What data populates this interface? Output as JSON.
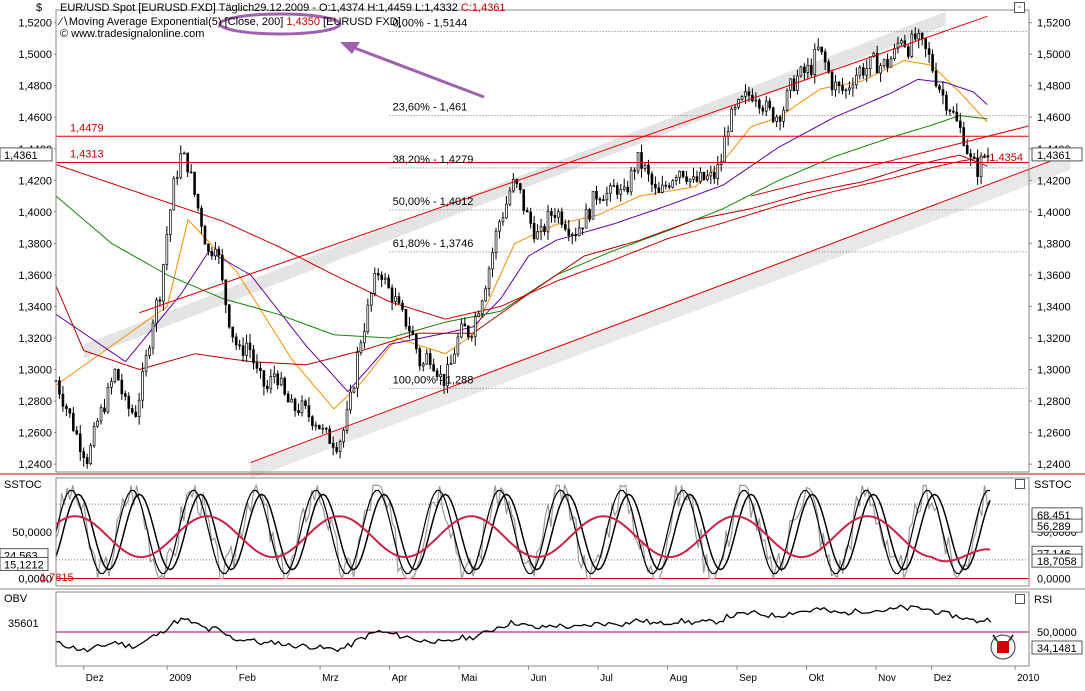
{
  "header": {
    "currency_symbol": "$",
    "line1": "EUR/USD Spot [EURUSD FXD]  Täglich29.12.2009 - O:1,4374 H:1,4459 L:1,4332 ",
    "line1_close": "C:1,4361",
    "line2_a": "Moving Average Exponential(5) ",
    "line2_circled": "[Close, 200] ",
    "line2_value": "1,4350",
    "line2_b": " [EURUSD FXD]",
    "line3": "www.tradesignalonline.com",
    "copyright_icon": "copyright-icon"
  },
  "colors": {
    "up": "#ffffff",
    "down": "#000000",
    "ema5": "#b40000",
    "ema20": "#ff8c00",
    "ema50": "#6600aa",
    "ema100": "#118800",
    "ema200": "#cc0000",
    "channel": "#e00000",
    "arrow": "#a060b0",
    "stoch_k": "#000000",
    "stoch_d": "#cc2244",
    "stoch_raw": "#999999",
    "obv": "#000000"
  },
  "chart_data": [
    {
      "type": "candlestick",
      "name": "EUR/USD Spot",
      "ylim": [
        1.235,
        1.528
      ],
      "y_ticks": [
        "1,5200",
        "1,5000",
        "1,4800",
        "1,4600",
        "1,4400",
        "1,4200",
        "1,4000",
        "1,3800",
        "1,3600",
        "1,3400",
        "1,3200",
        "1,3000",
        "1,2800",
        "1,2600",
        "1,2400"
      ],
      "y_tick_values": [
        1.52,
        1.5,
        1.48,
        1.46,
        1.44,
        1.42,
        1.4,
        1.38,
        1.36,
        1.34,
        1.32,
        1.3,
        1.28,
        1.26,
        1.24
      ],
      "x_labels": [
        "Dez",
        "2009",
        "Feb",
        "Mrz",
        "Apr",
        "Mai",
        "Jun",
        "Jul",
        "Aug",
        "Sep",
        "Okt",
        "Nov",
        "Dez",
        "2010"
      ],
      "x_label_values": [
        2,
        8,
        13,
        19,
        24,
        29,
        34,
        39,
        44,
        49,
        54,
        59,
        63,
        69
      ],
      "last_price_label": "1,4361",
      "last_price": 1.4361,
      "ema_value_label": "1,4354",
      "horizontal_levels": [
        {
          "label": "1,4479",
          "value": 1.4479
        },
        {
          "label": "1,4313",
          "value": 1.4313
        }
      ],
      "fibonacci": [
        {
          "label": "0,00% - 1,5144",
          "value": 1.5144
        },
        {
          "label": "23,60% - 1,461",
          "value": 1.461
        },
        {
          "label": "38,20% - 1,4279",
          "value": 1.4279
        },
        {
          "label": "50,00% - 1,4012",
          "value": 1.4012
        },
        {
          "label": "61,80% - 1,3746",
          "value": 1.3746
        },
        {
          "label": "100,00% - 1,288",
          "value": 1.288
        }
      ],
      "channel_upper": [
        [
          6,
          1.336
        ],
        [
          67,
          1.524
        ]
      ],
      "channel_lower": [
        [
          14,
          1.241
        ],
        [
          73,
          1.437
        ]
      ],
      "channel_band": [
        [
          2,
          1.316
        ],
        [
          64,
          1.527
        ]
      ],
      "price_path": [
        [
          0,
          1.293
        ],
        [
          0.8,
          1.275
        ],
        [
          1.6,
          1.256
        ],
        [
          2.3,
          1.243
        ],
        [
          3.0,
          1.267
        ],
        [
          3.7,
          1.283
        ],
        [
          4.3,
          1.3
        ],
        [
          5.0,
          1.277
        ],
        [
          5.7,
          1.272
        ],
        [
          6.3,
          1.296
        ],
        [
          7.0,
          1.334
        ],
        [
          7.5,
          1.35
        ],
        [
          8.0,
          1.388
        ],
        [
          8.5,
          1.418
        ],
        [
          9.0,
          1.436
        ],
        [
          9.5,
          1.43
        ],
        [
          10.0,
          1.41
        ],
        [
          10.5,
          1.393
        ],
        [
          11.0,
          1.372
        ],
        [
          11.5,
          1.383
        ],
        [
          12.0,
          1.352
        ],
        [
          12.6,
          1.326
        ],
        [
          13.2,
          1.31
        ],
        [
          13.8,
          1.318
        ],
        [
          14.5,
          1.296
        ],
        [
          15.2,
          1.287
        ],
        [
          15.8,
          1.3
        ],
        [
          16.4,
          1.283
        ],
        [
          17.0,
          1.275
        ],
        [
          17.6,
          1.276
        ],
        [
          18.2,
          1.271
        ],
        [
          18.8,
          1.267
        ],
        [
          19.3,
          1.258
        ],
        [
          19.8,
          1.256
        ],
        [
          20.3,
          1.253
        ],
        [
          20.8,
          1.264
        ],
        [
          21.3,
          1.285
        ],
        [
          21.8,
          1.315
        ],
        [
          22.3,
          1.332
        ],
        [
          22.8,
          1.352
        ],
        [
          23.3,
          1.365
        ],
        [
          23.8,
          1.352
        ],
        [
          24.3,
          1.346
        ],
        [
          24.8,
          1.335
        ],
        [
          25.3,
          1.329
        ],
        [
          25.8,
          1.318
        ],
        [
          26.3,
          1.3
        ],
        [
          26.8,
          1.311
        ],
        [
          27.3,
          1.303
        ],
        [
          27.8,
          1.292
        ],
        [
          28.3,
          1.299
        ],
        [
          28.8,
          1.317
        ],
        [
          29.3,
          1.326
        ],
        [
          29.8,
          1.323
        ],
        [
          30.3,
          1.337
        ],
        [
          30.8,
          1.352
        ],
        [
          31.3,
          1.37
        ],
        [
          31.8,
          1.392
        ],
        [
          32.3,
          1.402
        ],
        [
          32.8,
          1.418
        ],
        [
          33.3,
          1.414
        ],
        [
          33.8,
          1.399
        ],
        [
          34.3,
          1.39
        ],
        [
          34.8,
          1.383
        ],
        [
          35.3,
          1.394
        ],
        [
          35.8,
          1.401
        ],
        [
          36.3,
          1.398
        ],
        [
          36.8,
          1.392
        ],
        [
          37.3,
          1.387
        ],
        [
          37.8,
          1.393
        ],
        [
          38.3,
          1.399
        ],
        [
          38.8,
          1.411
        ],
        [
          39.3,
          1.413
        ],
        [
          39.8,
          1.41
        ],
        [
          40.3,
          1.417
        ],
        [
          40.8,
          1.408
        ],
        [
          41.3,
          1.421
        ],
        [
          41.8,
          1.433
        ],
        [
          42.3,
          1.428
        ],
        [
          42.8,
          1.418
        ],
        [
          43.3,
          1.409
        ],
        [
          43.8,
          1.416
        ],
        [
          44.3,
          1.422
        ],
        [
          44.8,
          1.428
        ],
        [
          45.3,
          1.425
        ],
        [
          45.8,
          1.418
        ],
        [
          46.3,
          1.42
        ],
        [
          46.8,
          1.421
        ],
        [
          47.3,
          1.422
        ],
        [
          47.8,
          1.43
        ],
        [
          48.3,
          1.455
        ],
        [
          48.8,
          1.462
        ],
        [
          49.3,
          1.469
        ],
        [
          49.8,
          1.474
        ],
        [
          50.3,
          1.476
        ],
        [
          50.8,
          1.469
        ],
        [
          51.3,
          1.463
        ],
        [
          51.8,
          1.461
        ],
        [
          52.3,
          1.465
        ],
        [
          52.8,
          1.478
        ],
        [
          53.3,
          1.485
        ],
        [
          53.8,
          1.488
        ],
        [
          54.3,
          1.491
        ],
        [
          54.8,
          1.503
        ],
        [
          55.3,
          1.495
        ],
        [
          55.8,
          1.482
        ],
        [
          56.3,
          1.478
        ],
        [
          56.8,
          1.476
        ],
        [
          57.3,
          1.485
        ],
        [
          57.8,
          1.49
        ],
        [
          58.3,
          1.491
        ],
        [
          58.8,
          1.495
        ],
        [
          59.3,
          1.493
        ],
        [
          59.8,
          1.494
        ],
        [
          60.3,
          1.5
        ],
        [
          60.8,
          1.512
        ],
        [
          61.3,
          1.504
        ],
        [
          61.8,
          1.51
        ],
        [
          62.3,
          1.505
        ],
        [
          62.8,
          1.498
        ],
        [
          63.3,
          1.485
        ],
        [
          63.8,
          1.474
        ],
        [
          64.3,
          1.467
        ],
        [
          64.8,
          1.456
        ],
        [
          65.3,
          1.448
        ],
        [
          65.8,
          1.432
        ],
        [
          66.3,
          1.427
        ],
        [
          66.8,
          1.436
        ],
        [
          67.3,
          1.436
        ]
      ],
      "emas": [
        {
          "key": "ema20",
          "points": [
            [
              0,
              1.29
            ],
            [
              8,
              1.34
            ],
            [
              9.5,
              1.395
            ],
            [
              13,
              1.362
            ],
            [
              17,
              1.306
            ],
            [
              20,
              1.275
            ],
            [
              22,
              1.292
            ],
            [
              24.5,
              1.32
            ],
            [
              28,
              1.31
            ],
            [
              30,
              1.322
            ],
            [
              33,
              1.38
            ],
            [
              36,
              1.392
            ],
            [
              39,
              1.398
            ],
            [
              42,
              1.41
            ],
            [
              46,
              1.416
            ],
            [
              48,
              1.432
            ],
            [
              50,
              1.454
            ],
            [
              52,
              1.46
            ],
            [
              55,
              1.478
            ],
            [
              58,
              1.483
            ],
            [
              61,
              1.496
            ],
            [
              63,
              1.493
            ],
            [
              65,
              1.476
            ],
            [
              67,
              1.457
            ]
          ]
        },
        {
          "key": "ema50",
          "points": [
            [
              0,
              1.335
            ],
            [
              5,
              1.305
            ],
            [
              9,
              1.348
            ],
            [
              11,
              1.375
            ],
            [
              14,
              1.36
            ],
            [
              18,
              1.315
            ],
            [
              21,
              1.286
            ],
            [
              24,
              1.316
            ],
            [
              28,
              1.323
            ],
            [
              30,
              1.327
            ],
            [
              32,
              1.345
            ],
            [
              34,
              1.372
            ],
            [
              36,
              1.382
            ],
            [
              40,
              1.392
            ],
            [
              44,
              1.404
            ],
            [
              48,
              1.417
            ],
            [
              52,
              1.441
            ],
            [
              56,
              1.46
            ],
            [
              60,
              1.475
            ],
            [
              62,
              1.484
            ],
            [
              64,
              1.482
            ],
            [
              66,
              1.476
            ],
            [
              67,
              1.468
            ]
          ]
        },
        {
          "key": "ema100",
          "points": [
            [
              0,
              1.41
            ],
            [
              4,
              1.38
            ],
            [
              8,
              1.36
            ],
            [
              12,
              1.345
            ],
            [
              16,
              1.335
            ],
            [
              20,
              1.322
            ],
            [
              24,
              1.32
            ],
            [
              28,
              1.33
            ],
            [
              32,
              1.337
            ],
            [
              36,
              1.36
            ],
            [
              40,
              1.375
            ],
            [
              44,
              1.388
            ],
            [
              48,
              1.402
            ],
            [
              52,
              1.42
            ],
            [
              56,
              1.435
            ],
            [
              60,
              1.447
            ],
            [
              63,
              1.455
            ],
            [
              65,
              1.461
            ],
            [
              67,
              1.459
            ]
          ]
        },
        {
          "key": "ema200",
          "points": [
            [
              0,
              1.43
            ],
            [
              4,
              1.418
            ],
            [
              8,
              1.406
            ],
            [
              12,
              1.394
            ],
            [
              16,
              1.378
            ],
            [
              20,
              1.36
            ],
            [
              24,
              1.343
            ],
            [
              28,
              1.332
            ],
            [
              32,
              1.34
            ],
            [
              36,
              1.356
            ],
            [
              40,
              1.369
            ],
            [
              44,
              1.383
            ],
            [
              48,
              1.393
            ],
            [
              52,
              1.404
            ],
            [
              56,
              1.413
            ],
            [
              60,
              1.421
            ],
            [
              63,
              1.428
            ],
            [
              65,
              1.432
            ],
            [
              67,
              1.435
            ]
          ]
        },
        {
          "key": "ema5",
          "points": [
            [
              0,
              1.353
            ],
            [
              2,
              1.312
            ],
            [
              6,
              1.3
            ],
            [
              10,
              1.31
            ],
            [
              14,
              1.305
            ],
            [
              18,
              1.303
            ],
            [
              22,
              1.312
            ],
            [
              26,
              1.323
            ],
            [
              30,
              1.323
            ],
            [
              34,
              1.348
            ],
            [
              38,
              1.372
            ],
            [
              42,
              1.382
            ],
            [
              46,
              1.395
            ],
            [
              50,
              1.402
            ],
            [
              54,
              1.412
            ],
            [
              58,
              1.419
            ],
            [
              62,
              1.43
            ],
            [
              65,
              1.436
            ],
            [
              67,
              1.429
            ]
          ]
        }
      ]
    },
    {
      "type": "line",
      "name": "SSTOC",
      "ylim": [
        -8,
        108
      ],
      "y_ticks": [
        "50,0000",
        "0,0000"
      ],
      "y_tick_values": [
        50,
        0
      ],
      "right_labels": [
        {
          "label": "68,451",
          "value": 68.451
        },
        {
          "label": "56,289",
          "value": 56.289
        },
        {
          "label": "27,146",
          "value": 27.146
        },
        {
          "label": "18,7058",
          "value": 18.7058
        }
      ],
      "left_labels": [
        {
          "label": "24,563",
          "value": 24.563
        },
        {
          "label": "15,1212",
          "value": 15.1212
        },
        {
          "label": "1,7815",
          "value": 1.7815
        }
      ],
      "reference_lines": [
        80,
        20
      ]
    },
    {
      "type": "line",
      "name": "OBV",
      "label_left": "OBV",
      "label_right": "RSI",
      "value_label": "35601",
      "right_labels": [
        {
          "label": "50,0000",
          "value": 50
        },
        {
          "label": "34,1481",
          "value": 34.1481
        }
      ]
    }
  ],
  "panels": {
    "stoch_title_left": "SSTOC",
    "stoch_title_right": "SSTOC",
    "obv_title_left": "OBV",
    "obv_title_right": "RSI"
  },
  "icons": {
    "maximize_a": "maximize-icon",
    "maximize_b": "maximize-icon",
    "maximize_c": "maximize-icon",
    "logo": "bull-logo-icon",
    "arrow": "arrow-annotation"
  }
}
